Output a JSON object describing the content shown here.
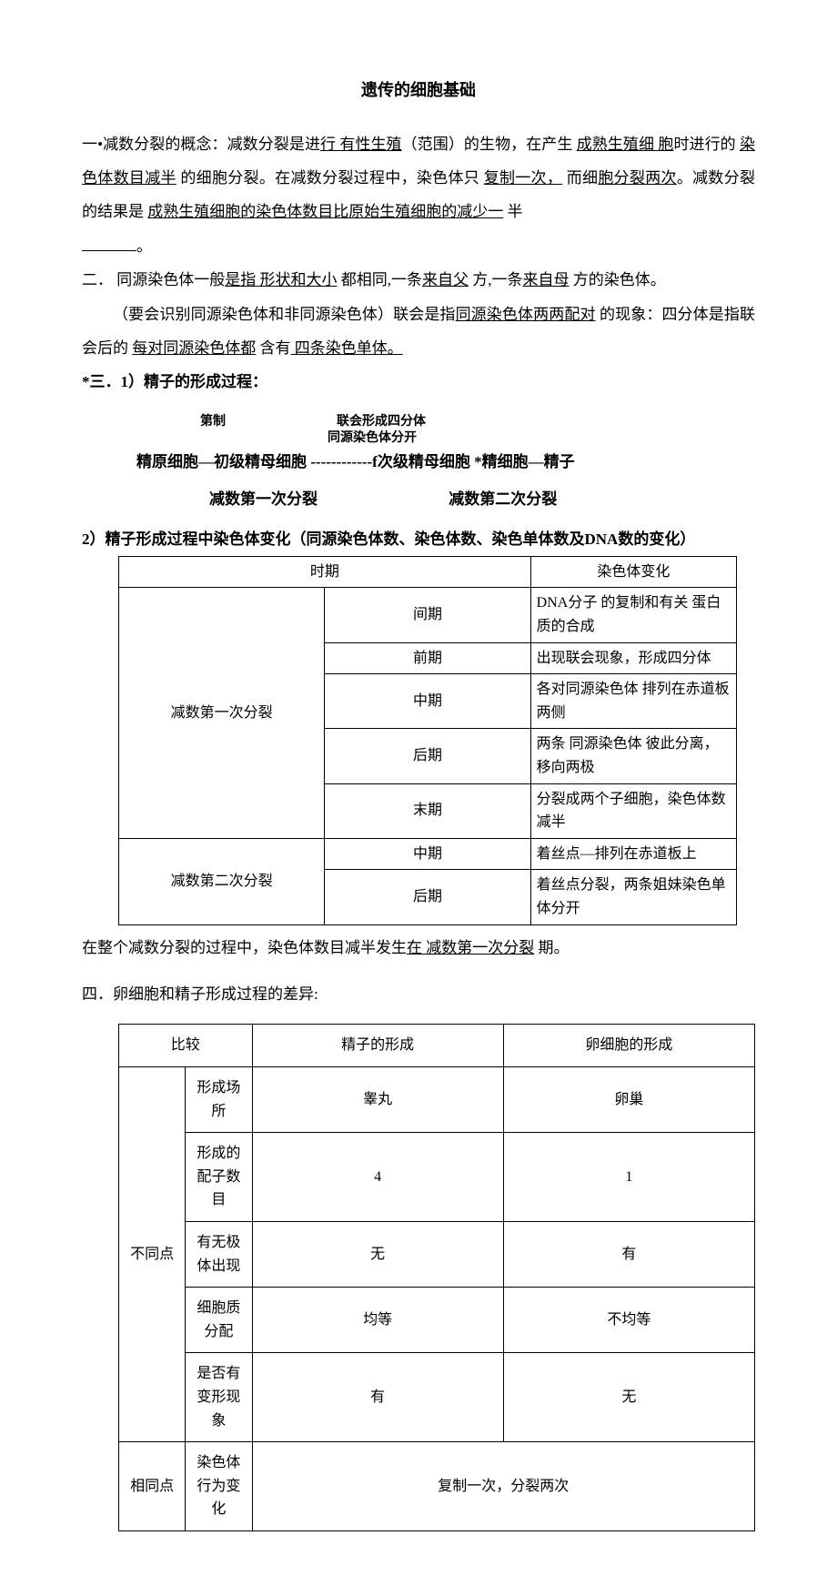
{
  "title": "遗传的细胞基础",
  "p1": {
    "t1": "一•减数分裂的概念：减数分裂是进",
    "u1": "行 有性生殖",
    "t2": "（范围）的生物，在产生 ",
    "u2": "成熟生殖细 胞",
    "t3": "时进行的 ",
    "u3": "染色体数目减半",
    "t4": " 的细胞分裂。在减数分裂过程中，染色体只 ",
    "u4": "复制一次，",
    "t5": "   而细",
    "u5": "胞分裂两次",
    "t6": "。减数分裂的结果是 ",
    "u6": "成熟生殖细胞的染色体数目比原始生殖细胞的减少一",
    "t7": " 半"
  },
  "p1_tail": "。",
  "p2": {
    "t1": "二．  同源染色体一般",
    "u1": "是指 形状和大小",
    "t2": " 都相同,一条",
    "u2": "来自父",
    "t3": " 方,一条",
    "u3": "来自母",
    "t4": " 方的染色体。"
  },
  "p3": {
    "t1": "（要会识别同源染色体和非同源染色体）联会是指",
    "u1": "同源染色体两两配对",
    "t2": " 的现象：四分体是指联会后的 ",
    "u2": "每对同源染色体都",
    "t3": " 含有",
    "u3": " 四条染色单体。"
  },
  "sec3_title": "*三．1）精子的形成过程：",
  "process": {
    "lbl1": "第制",
    "lbl2": "联会形成四分体",
    "lbl3": "同源染色体分开",
    "line": "精原细胞—初级精母细胞 ------------f次级精母细胞        *精细胞—精子",
    "sub1": "减数第一次分裂",
    "sub2": "减数第二次分裂"
  },
  "sec3_2_title": "2）精子形成过程中染色体变化（同源染色体数、染色体数、染色单体数及DNA数的变化）",
  "table1": {
    "hdr_period": "时期",
    "hdr_change": "染色体变化",
    "g1": "减数第一次分裂",
    "g2": "减数第二次分裂",
    "rows": [
      {
        "phase": "间期",
        "change": "  DNA分子 的复制和有关 蛋白质的合成"
      },
      {
        "phase": "前期",
        "change": "出现联会现象，形成四分体"
      },
      {
        "phase": "中期",
        "change": "各对同源染色体     排列在赤道板两侧"
      },
      {
        "phase": "后期",
        "change": "两条 同源染色体    彼此分离，移向两极"
      },
      {
        "phase": "末期",
        "change": "分裂成两个子细胞，染色体数减半"
      },
      {
        "phase": "中期",
        "change": "着丝点—排列在赤道板上"
      },
      {
        "phase": "后期",
        "change": " 着丝点分裂，两条姐妹染色单体分开"
      }
    ]
  },
  "after_t1": {
    "t1": "在整个减数分裂的过程中，染色体数目减半发生",
    "u1": "在 减数第一次分裂",
    "t2": " 期。"
  },
  "sec4_title": "四．卵细胞和精子形成过程的差异:",
  "table2": {
    "h1": "比较",
    "h2": "精子的形成",
    "h3": "卵细胞的形成",
    "g_diff": "不同点",
    "g_same": "相同点",
    "rows": [
      {
        "label": "形成场所",
        "c1": "睾丸",
        "c2": "卵巢"
      },
      {
        "label": "形成的配子数目",
        "c1": "4",
        "c2": "1"
      },
      {
        "label": "有无极体出现",
        "c1": "无",
        "c2": "有"
      },
      {
        "label": "细胞质分配",
        "c1": "均等",
        "c2": "不均等"
      },
      {
        "label": "是否有变形现象",
        "c1": "有",
        "c2": "无"
      }
    ],
    "same_label": "染色体行为变化",
    "same_val": "复制一次，分裂两次"
  }
}
